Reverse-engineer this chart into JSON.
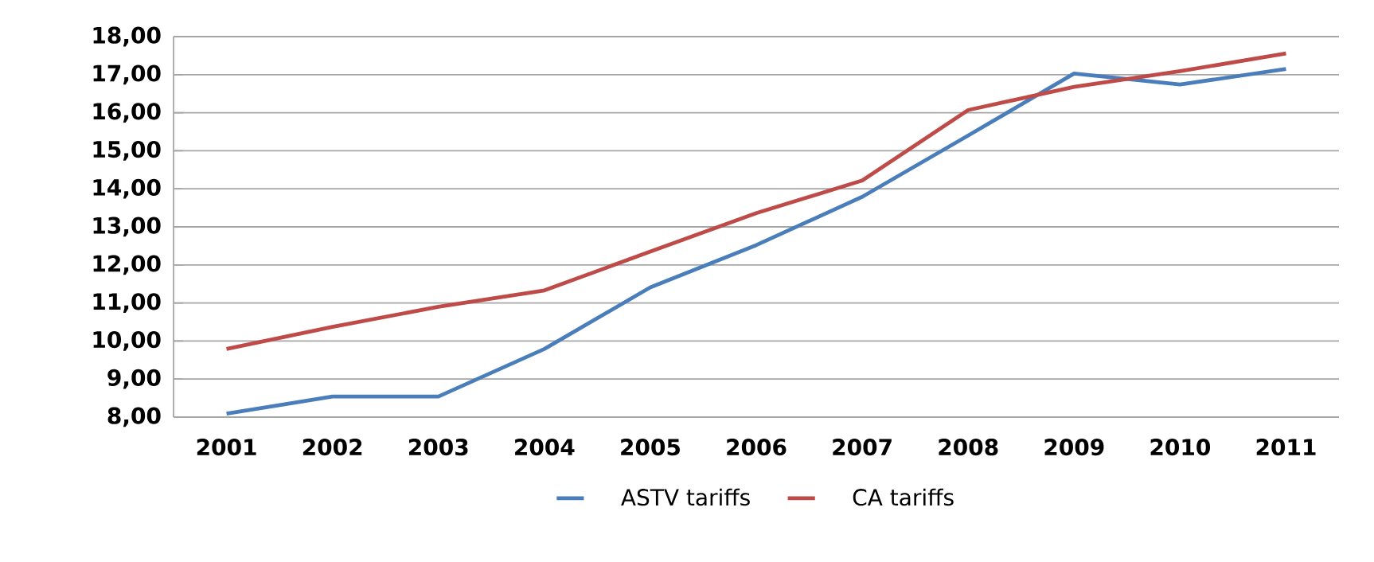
{
  "chart_data": {
    "type": "line",
    "categories": [
      "2001",
      "2002",
      "2003",
      "2004",
      "2005",
      "2006",
      "2007",
      "2008",
      "2009",
      "2010",
      "2011"
    ],
    "series": [
      {
        "name": "ASTV tariffs",
        "color": "#4a7ebb",
        "values": [
          8.09,
          8.54,
          8.54,
          9.79,
          11.41,
          12.52,
          13.79,
          15.4,
          17.03,
          16.74,
          17.15
        ]
      },
      {
        "name": "CA tariffs",
        "color": "#be4b48",
        "values": [
          9.79,
          10.37,
          10.9,
          11.33,
          12.35,
          13.36,
          14.22,
          16.07,
          16.68,
          17.09,
          17.56
        ]
      }
    ],
    "ylim": [
      8,
      18
    ],
    "yticks": [
      {
        "value": 8,
        "label": "8,00"
      },
      {
        "value": 9,
        "label": "9,00"
      },
      {
        "value": 10,
        "label": "10,00"
      },
      {
        "value": 11,
        "label": "11,00"
      },
      {
        "value": 12,
        "label": "12,00"
      },
      {
        "value": 13,
        "label": "13,00"
      },
      {
        "value": 14,
        "label": "14,00"
      },
      {
        "value": 15,
        "label": "15,00"
      },
      {
        "value": 16,
        "label": "16,00"
      },
      {
        "value": 17,
        "label": "17,00"
      },
      {
        "value": 18,
        "label": "18,00"
      }
    ],
    "grid": "y",
    "legend": "bottom",
    "marker": "none",
    "line_style": "solid"
  }
}
